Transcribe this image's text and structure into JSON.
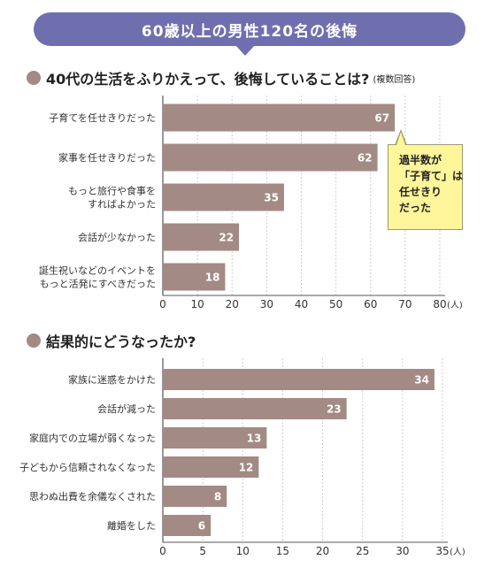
{
  "banner": "60歳以上の男性120名の後悔",
  "colors": {
    "banner": "#6f6fb0",
    "bar": "#a38a84",
    "bullet": "#a38a84",
    "callout": "#fff59a"
  },
  "chart_data": [
    {
      "type": "bar",
      "orientation": "horizontal",
      "title": "40代の生活をふりかえって、後悔していることは?",
      "note": "(複数回答)",
      "categories": [
        [
          "子育てを任せきりだった"
        ],
        [
          "家事を任せきりだった"
        ],
        [
          "もっと旅行や食事を",
          "すればよかった"
        ],
        [
          "会話が少なかった"
        ],
        [
          "誕生祝いなどのイベントを",
          "もっと活発にすべきだった"
        ]
      ],
      "values": [
        67,
        62,
        35,
        22,
        18
      ],
      "xlim": [
        0,
        80
      ],
      "xticks": [
        "0",
        "10",
        "20",
        "30",
        "40",
        "50",
        "60",
        "70",
        "80"
      ],
      "unit": "(人)",
      "annotation": [
        "過半数が",
        "「子育て」は",
        "任せきり",
        "だった"
      ]
    },
    {
      "type": "bar",
      "orientation": "horizontal",
      "title": "結果的にどうなったか?",
      "categories": [
        [
          "家族に迷惑をかけた"
        ],
        [
          "会話が減った"
        ],
        [
          "家庭内での立場が弱くなった"
        ],
        [
          "子どもから信頼されなくなった"
        ],
        [
          "思わぬ出費を余儀なくされた"
        ],
        [
          "離婚をした"
        ]
      ],
      "values": [
        34,
        23,
        13,
        12,
        8,
        6
      ],
      "xlim": [
        0,
        35
      ],
      "xticks": [
        "0",
        "5",
        "10",
        "15",
        "20",
        "25",
        "30",
        "35"
      ],
      "unit": "(人)"
    }
  ]
}
